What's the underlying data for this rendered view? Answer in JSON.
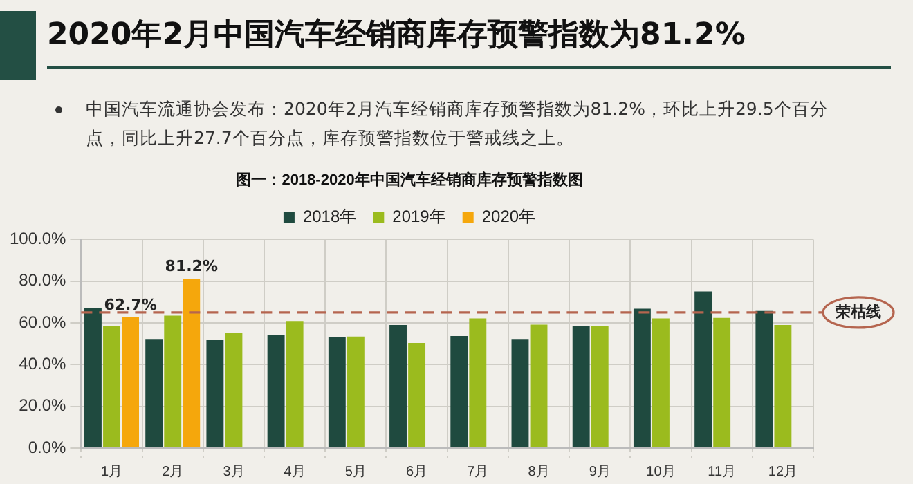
{
  "chart_data": {
    "type": "bar",
    "title": "2020年2月中国汽车经销商库存预警指数为81.2%",
    "subtitle": "中国汽车流通协会发布：2020年2月汽车经销商库存预警指数为81.2%，环比上升29.5个百分点，同比上升27.7个百分点，库存预警指数位于警戒线之上。",
    "annotations": [
      "图一：2018-2020年中国汽车经销商库存预警指数图"
    ],
    "categories": [
      "1月",
      "2月",
      "3月",
      "4月",
      "5月",
      "6月",
      "7月",
      "8月",
      "9月",
      "10月",
      "11月",
      "12月"
    ],
    "series": [
      {
        "name": "2018年",
        "color": "#1f4a3f",
        "values": [
          67.2,
          52,
          51.7,
          54.4,
          53.3,
          59,
          53.7,
          52,
          58.7,
          66.8,
          75.1,
          65.7
        ]
      },
      {
        "name": "2019年",
        "color": "#9bbb1e",
        "values": [
          58.7,
          63.5,
          55.2,
          60.9,
          53.5,
          50.4,
          62.2,
          59.2,
          58.5,
          62.2,
          62.4,
          59
        ]
      },
      {
        "name": "2020年",
        "color": "#f5a70c",
        "values": [
          62.7,
          81.2,
          null,
          null,
          null,
          null,
          null,
          null,
          null,
          null,
          null,
          null
        ],
        "value_labels": [
          "62.7%",
          "81.2%",
          null,
          null,
          null,
          null,
          null,
          null,
          null,
          null,
          null,
          null
        ]
      }
    ],
    "ylim": [
      0,
      100
    ],
    "yticks": [
      {
        "value": 0,
        "label": "0.0%"
      },
      {
        "value": 20,
        "label": "20.0%"
      },
      {
        "value": 40,
        "label": "40.0%"
      },
      {
        "value": 60,
        "label": "60.0%"
      },
      {
        "value": 80,
        "label": "80.0%"
      },
      {
        "value": 100,
        "label": "100.0%"
      }
    ],
    "ref_lines": [
      {
        "axis": "y",
        "value": 65,
        "label": "荣枯线",
        "color": "#b5654f",
        "line_style": "dashed"
      }
    ],
    "grid": true,
    "legend": "top"
  }
}
